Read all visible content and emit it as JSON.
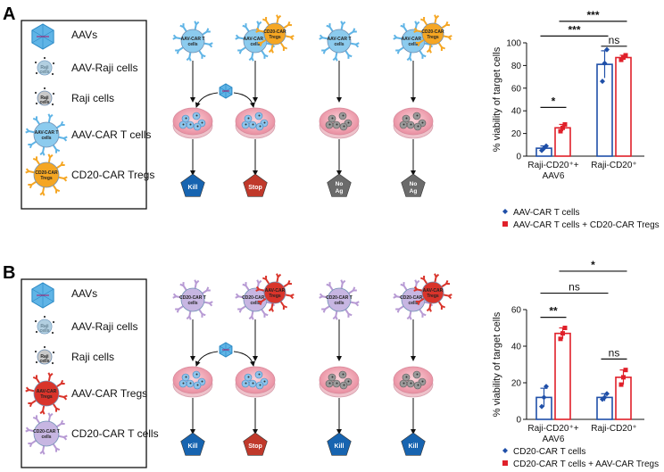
{
  "panels": [
    {
      "letter": "A",
      "legend": [
        {
          "label": "AAVs",
          "icon": "aav-capsid-icon"
        },
        {
          "label": "AAV-Raji cells",
          "icon": "aav-raji-cell-icon",
          "tag": "Raji cells"
        },
        {
          "label": "Raji cells",
          "icon": "raji-cell-icon",
          "tag": "Raji cells"
        },
        {
          "label": "AAV-CAR T cells",
          "icon": "aav-car-t-cell-icon",
          "tag": "AAV-CAR T cells"
        },
        {
          "label": "CD20-CAR Tregs",
          "icon": "cd20-car-treg-icon",
          "tag": "CD20-CAR Tregs"
        }
      ],
      "scenarios": [
        {
          "effectors": [
            "AAV-CAR T cells"
          ],
          "outcome": "Kill"
        },
        {
          "effectors": [
            "AAV-CAR T cells",
            "CD20-CAR Tregs"
          ],
          "outcome": "Stop"
        },
        {
          "effectors": [
            "AAV-CAR T cells"
          ],
          "outcome": "No Ag"
        },
        {
          "effectors": [
            "AAV-CAR T cells",
            "CD20-CAR Tregs"
          ],
          "outcome": "No Ag"
        }
      ]
    },
    {
      "letter": "B",
      "legend": [
        {
          "label": "AAVs",
          "icon": "aav-capsid-icon"
        },
        {
          "label": "AAV-Raji cells",
          "icon": "aav-raji-cell-icon",
          "tag": "Raji cells"
        },
        {
          "label": "Raji cells",
          "icon": "raji-cell-icon",
          "tag": "Raji cells"
        },
        {
          "label": "AAV-CAR Tregs",
          "icon": "aav-car-treg-icon",
          "tag": "AAV-CAR Tregs"
        },
        {
          "label": "CD20-CAR T cells",
          "icon": "cd20-car-t-cell-icon",
          "tag": "CD20-CAR T cells"
        }
      ],
      "scenarios": [
        {
          "effectors": [
            "CD20-CAR T cells"
          ],
          "outcome": "Kill"
        },
        {
          "effectors": [
            "CD20-CAR T cells",
            "AAV-CAR Tregs"
          ],
          "outcome": "Stop"
        },
        {
          "effectors": [
            "CD20-CAR T cells"
          ],
          "outcome": "Kill"
        },
        {
          "effectors": [
            "CD20-CAR T cells",
            "AAV-CAR Tregs"
          ],
          "outcome": "Kill"
        }
      ]
    }
  ],
  "colors": {
    "blue": "#1f4fa8",
    "red": "#e0202a",
    "kill": "#1764b0",
    "stop": "#c0392b",
    "noag": "#6b6b6b",
    "aav": "#5fb4e6",
    "orange": "#f5a623",
    "purple": "#b79ad4",
    "treg_red": "#d9342b",
    "dish": "#f2aeb9"
  },
  "chart_data": [
    {
      "type": "bar",
      "title": "",
      "ylabel": "% viability of target cells",
      "ylim": [
        0,
        100
      ],
      "yticks": [
        0,
        20,
        40,
        60,
        80,
        100
      ],
      "categories": [
        "Raji-CD20⁺+\nAAV6",
        "Raji-CD20⁺"
      ],
      "series": [
        {
          "name": "AAV-CAR T cells",
          "color": "#1f4fa8",
          "marker": "◆",
          "values": [
            7,
            81
          ],
          "errors": [
            2,
            12
          ],
          "points": [
            [
              5,
              7,
              9
            ],
            [
              66,
              82,
              94
            ]
          ]
        },
        {
          "name": "AAV-CAR T cells + CD20-CAR Tregs",
          "color": "#e0202a",
          "marker": "■",
          "values": [
            25,
            87
          ],
          "errors": [
            3,
            2
          ],
          "points": [
            [
              22,
              25,
              28
            ],
            [
              85,
              87,
              89
            ]
          ]
        }
      ],
      "comparisons": [
        {
          "label": "*",
          "from": [
            0,
            0
          ],
          "to": [
            0,
            1
          ]
        },
        {
          "label": "ns",
          "from": [
            1,
            0
          ],
          "to": [
            1,
            1
          ]
        },
        {
          "label": "***",
          "from": [
            0,
            0
          ],
          "to": [
            1,
            0
          ]
        },
        {
          "label": "***",
          "from": [
            0,
            1
          ],
          "to": [
            1,
            1
          ]
        }
      ]
    },
    {
      "type": "bar",
      "title": "",
      "ylabel": "% viability of target cells",
      "ylim": [
        0,
        60
      ],
      "yticks": [
        0,
        20,
        40,
        60
      ],
      "categories": [
        "Raji-CD20⁺+\nAAV6",
        "Raji-CD20⁺"
      ],
      "series": [
        {
          "name": "CD20-CAR T cells",
          "color": "#1f4fa8",
          "marker": "◆",
          "values": [
            12,
            12
          ],
          "errors": [
            5,
            2
          ],
          "points": [
            [
              7,
              12,
              18
            ],
            [
              11,
              12,
              14
            ]
          ]
        },
        {
          "name": "CD20-CAR T cells + AAV-CAR Tregs",
          "color": "#e0202a",
          "marker": "■",
          "values": [
            47,
            23
          ],
          "errors": [
            3,
            4
          ],
          "points": [
            [
              44,
              47,
              50
            ],
            [
              19,
              23,
              27
            ]
          ]
        }
      ],
      "comparisons": [
        {
          "label": "**",
          "from": [
            0,
            0
          ],
          "to": [
            0,
            1
          ]
        },
        {
          "label": "ns",
          "from": [
            1,
            0
          ],
          "to": [
            1,
            1
          ]
        },
        {
          "label": "ns",
          "from": [
            0,
            0
          ],
          "to": [
            1,
            0
          ]
        },
        {
          "label": "*",
          "from": [
            0,
            1
          ],
          "to": [
            1,
            1
          ]
        }
      ]
    }
  ]
}
